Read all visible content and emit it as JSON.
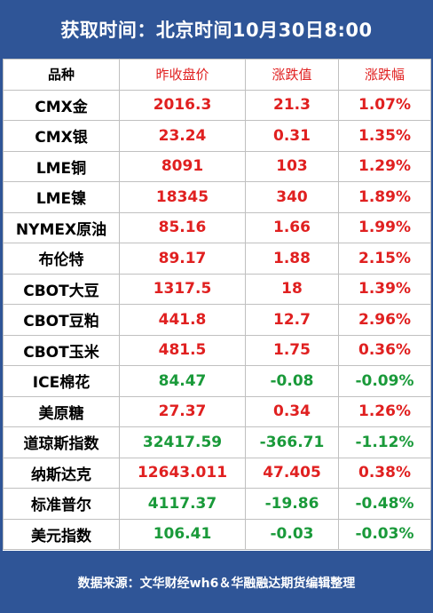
{
  "header": {
    "title": "获取时间：北京时间10月30日8:00"
  },
  "table": {
    "columns": [
      "品种",
      "昨收盘价",
      "涨跌值",
      "涨跌幅"
    ],
    "rows": [
      {
        "name": "CMX金",
        "close": "2016.3",
        "change": "21.3",
        "pct": "1.07%",
        "trend": "up"
      },
      {
        "name": "CMX银",
        "close": "23.24",
        "change": "0.31",
        "pct": "1.35%",
        "trend": "up"
      },
      {
        "name": "LME铜",
        "close": "8091",
        "change": "103",
        "pct": "1.29%",
        "trend": "up"
      },
      {
        "name": "LME镍",
        "close": "18345",
        "change": "340",
        "pct": "1.89%",
        "trend": "up"
      },
      {
        "name": "NYMEX原油",
        "close": "85.16",
        "change": "1.66",
        "pct": "1.99%",
        "trend": "up"
      },
      {
        "name": "布伦特",
        "close": "89.17",
        "change": "1.88",
        "pct": "2.15%",
        "trend": "up"
      },
      {
        "name": "CBOT大豆",
        "close": "1317.5",
        "change": "18",
        "pct": "1.39%",
        "trend": "up"
      },
      {
        "name": "CBOT豆粕",
        "close": "441.8",
        "change": "12.7",
        "pct": "2.96%",
        "trend": "up"
      },
      {
        "name": "CBOT玉米",
        "close": "481.5",
        "change": "1.75",
        "pct": "0.36%",
        "trend": "up"
      },
      {
        "name": "ICE棉花",
        "close": "84.47",
        "change": "-0.08",
        "pct": "-0.09%",
        "trend": "down"
      },
      {
        "name": "美原糖",
        "close": "27.37",
        "change": "0.34",
        "pct": "1.26%",
        "trend": "up"
      },
      {
        "name": "道琼斯指数",
        "close": "32417.59",
        "change": "-366.71",
        "pct": "-1.12%",
        "trend": "down"
      },
      {
        "name": "纳斯达克",
        "close": "12643.011",
        "change": "47.405",
        "pct": "0.38%",
        "trend": "up"
      },
      {
        "name": "标准普尔",
        "close": "4117.37",
        "change": "-19.86",
        "pct": "-0.48%",
        "trend": "down"
      },
      {
        "name": "美元指数",
        "close": "106.41",
        "change": "-0.03",
        "pct": "-0.03%",
        "trend": "down"
      }
    ]
  },
  "footer": {
    "source": "数据来源：文华财经wh6＆华融融达期货编辑整理"
  },
  "colors": {
    "background": "#2f5597",
    "up": "#e02020",
    "down": "#1a9a3a"
  }
}
